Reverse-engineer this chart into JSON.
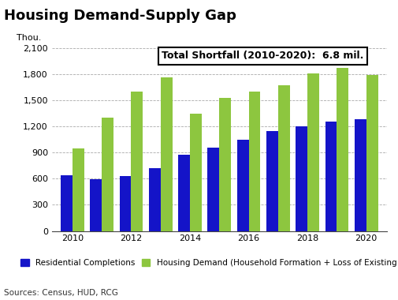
{
  "title": "Housing Demand-Supply Gap",
  "thou_label": "Thou.",
  "annotation": "Total Shortfall (2010-2020):  6.8 mil.",
  "sources": "Sources: Census, HUD, RCG",
  "years": [
    2010,
    2011,
    2012,
    2013,
    2014,
    2015,
    2016,
    2017,
    2018,
    2019,
    2020
  ],
  "residential_completions": [
    640,
    590,
    630,
    720,
    875,
    960,
    1050,
    1150,
    1200,
    1260,
    1280
  ],
  "housing_demand": [
    950,
    1300,
    1600,
    1760,
    1350,
    1530,
    1600,
    1670,
    1810,
    1870,
    1790
  ],
  "bar_color_blue": "#1414c8",
  "bar_color_green": "#8dc63f",
  "background_color": "#ffffff",
  "ylim": [
    0,
    2100
  ],
  "yticks": [
    0,
    300,
    600,
    900,
    1200,
    1500,
    1800,
    2100
  ],
  "ytick_labels": [
    "0",
    "300",
    "600",
    "900",
    "1,200",
    "1,500",
    "1,800",
    "2,100"
  ],
  "legend_label_blue": "Residential Completions",
  "legend_label_green": "Housing Demand (Household Formation + Loss of Existing Stock)",
  "title_fontsize": 13,
  "axis_label_fontsize": 8,
  "tick_fontsize": 8,
  "legend_fontsize": 7.5,
  "sources_fontsize": 7.5,
  "annotation_fontsize": 9
}
